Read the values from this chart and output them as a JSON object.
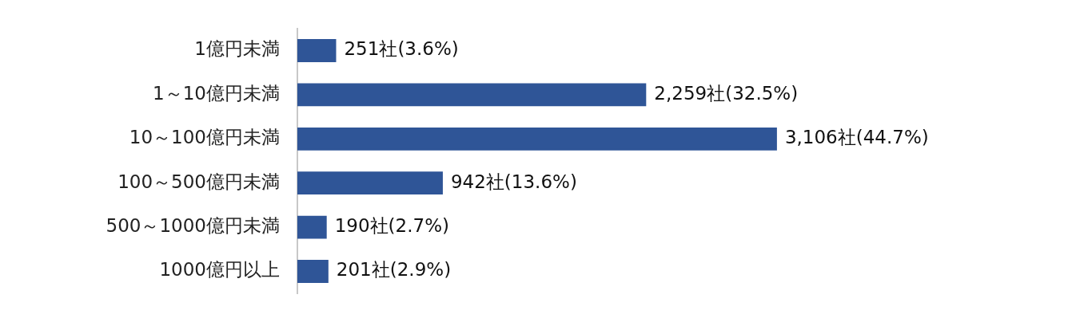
{
  "chart_data": {
    "type": "bar",
    "orientation": "horizontal",
    "categories": [
      "1億円未満",
      "1～10億円未満",
      "10～100億円未満",
      "100～500億円未満",
      "500～1000億円未満",
      "1000億円以上"
    ],
    "values": [
      251,
      2259,
      3106,
      942,
      190,
      201
    ],
    "value_labels": [
      "251社(3.6%)",
      "2,259社(32.5%)",
      "3,106社(44.7%)",
      "942社(13.6%)",
      "190社(2.7%)",
      "201社(2.9%)"
    ],
    "color": "#2f5597",
    "tick_labels": "y"
  }
}
